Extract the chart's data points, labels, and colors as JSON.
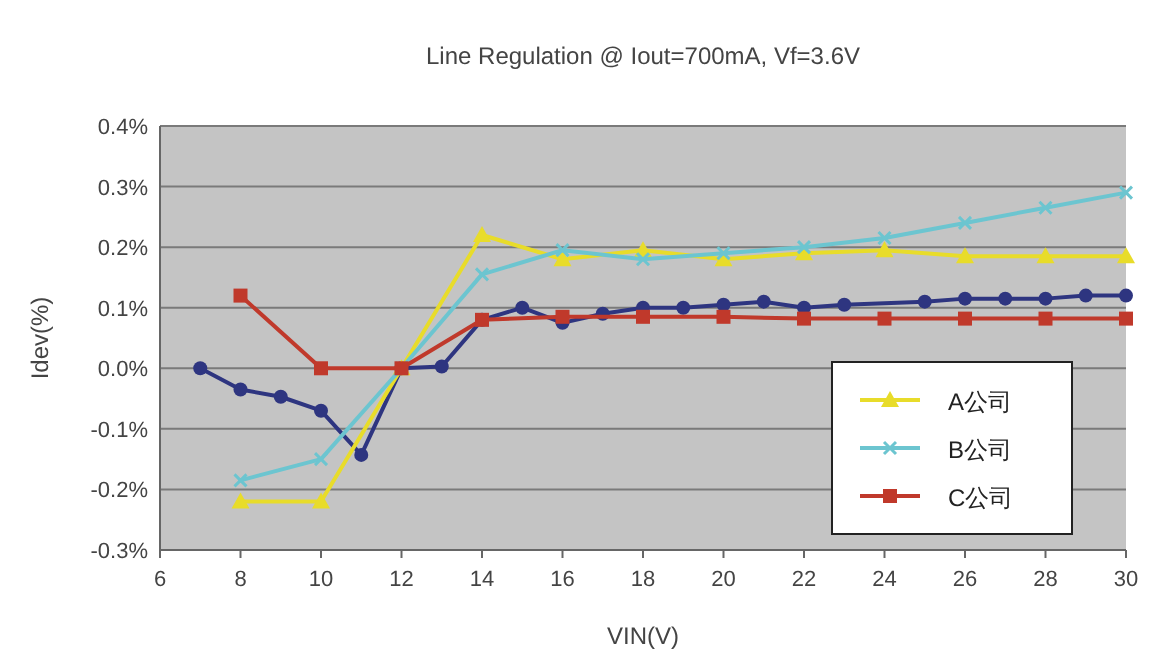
{
  "chart_data": {
    "type": "line",
    "title": "Line Regulation @ Iout=700mA, Vf=3.6V",
    "xlabel": "VIN(V)",
    "ylabel": "Idev(%)",
    "xlim": [
      6,
      30
    ],
    "xticks": [
      6,
      8,
      10,
      12,
      14,
      16,
      18,
      20,
      22,
      24,
      26,
      28,
      30
    ],
    "ylim": [
      -0.3,
      0.4
    ],
    "yticks": [
      {
        "value": -0.3,
        "label": "-0.3%"
      },
      {
        "value": -0.2,
        "label": "-0.2%"
      },
      {
        "value": -0.1,
        "label": "-0.1%"
      },
      {
        "value": 0,
        "label": "0.0%"
      },
      {
        "value": 0.1,
        "label": "0.1%"
      },
      {
        "value": 0.2,
        "label": "0.2%"
      },
      {
        "value": 0.3,
        "label": "0.3%"
      },
      {
        "value": 0.4,
        "label": "0.4%"
      }
    ],
    "grid": "y",
    "legend": "bottom right",
    "line_style": "solid",
    "series": [
      {
        "color": "#2e3580",
        "marker": "circle",
        "x": [
          7,
          8,
          9,
          10,
          11,
          12,
          13,
          14,
          15,
          16,
          17,
          18,
          19,
          20,
          21,
          22,
          23,
          25,
          26,
          27,
          28,
          29,
          30
        ],
        "values": [
          0,
          -0.035,
          -0.047,
          -0.07,
          -0.143,
          0,
          0.003,
          0.08,
          0.1,
          0.075,
          0.09,
          0.1,
          0.1,
          0.105,
          0.11,
          0.1,
          0.105,
          0.11,
          0.115,
          0.115,
          0.115,
          0.12,
          0.12
        ]
      },
      {
        "name": "A公司",
        "color": "#e8dc2a",
        "marker": "triangle",
        "x": [
          8,
          10,
          12,
          14,
          16,
          18,
          20,
          22,
          24,
          26,
          28,
          30
        ],
        "values": [
          -0.22,
          -0.22,
          0,
          0.22,
          0.18,
          0.195,
          0.18,
          0.19,
          0.195,
          0.185,
          0.185,
          0.185
        ]
      },
      {
        "name": "B公司",
        "color": "#6cc5d0",
        "marker": "cross",
        "x": [
          8,
          10,
          12,
          14,
          16,
          18,
          20,
          22,
          24,
          26,
          28,
          30
        ],
        "values": [
          -0.185,
          -0.15,
          0,
          0.155,
          0.195,
          0.18,
          0.19,
          0.2,
          0.215,
          0.24,
          0.265,
          0.29
        ]
      },
      {
        "name": "C公司",
        "color": "#c0392b",
        "marker": "square",
        "x": [
          8,
          10,
          12,
          14,
          16,
          18,
          20,
          22,
          24,
          26,
          28,
          30
        ],
        "values": [
          0.12,
          0,
          0,
          0.08,
          0.085,
          0.085,
          0.085,
          0.082,
          0.082,
          0.082,
          0.082,
          0.082
        ]
      }
    ]
  }
}
